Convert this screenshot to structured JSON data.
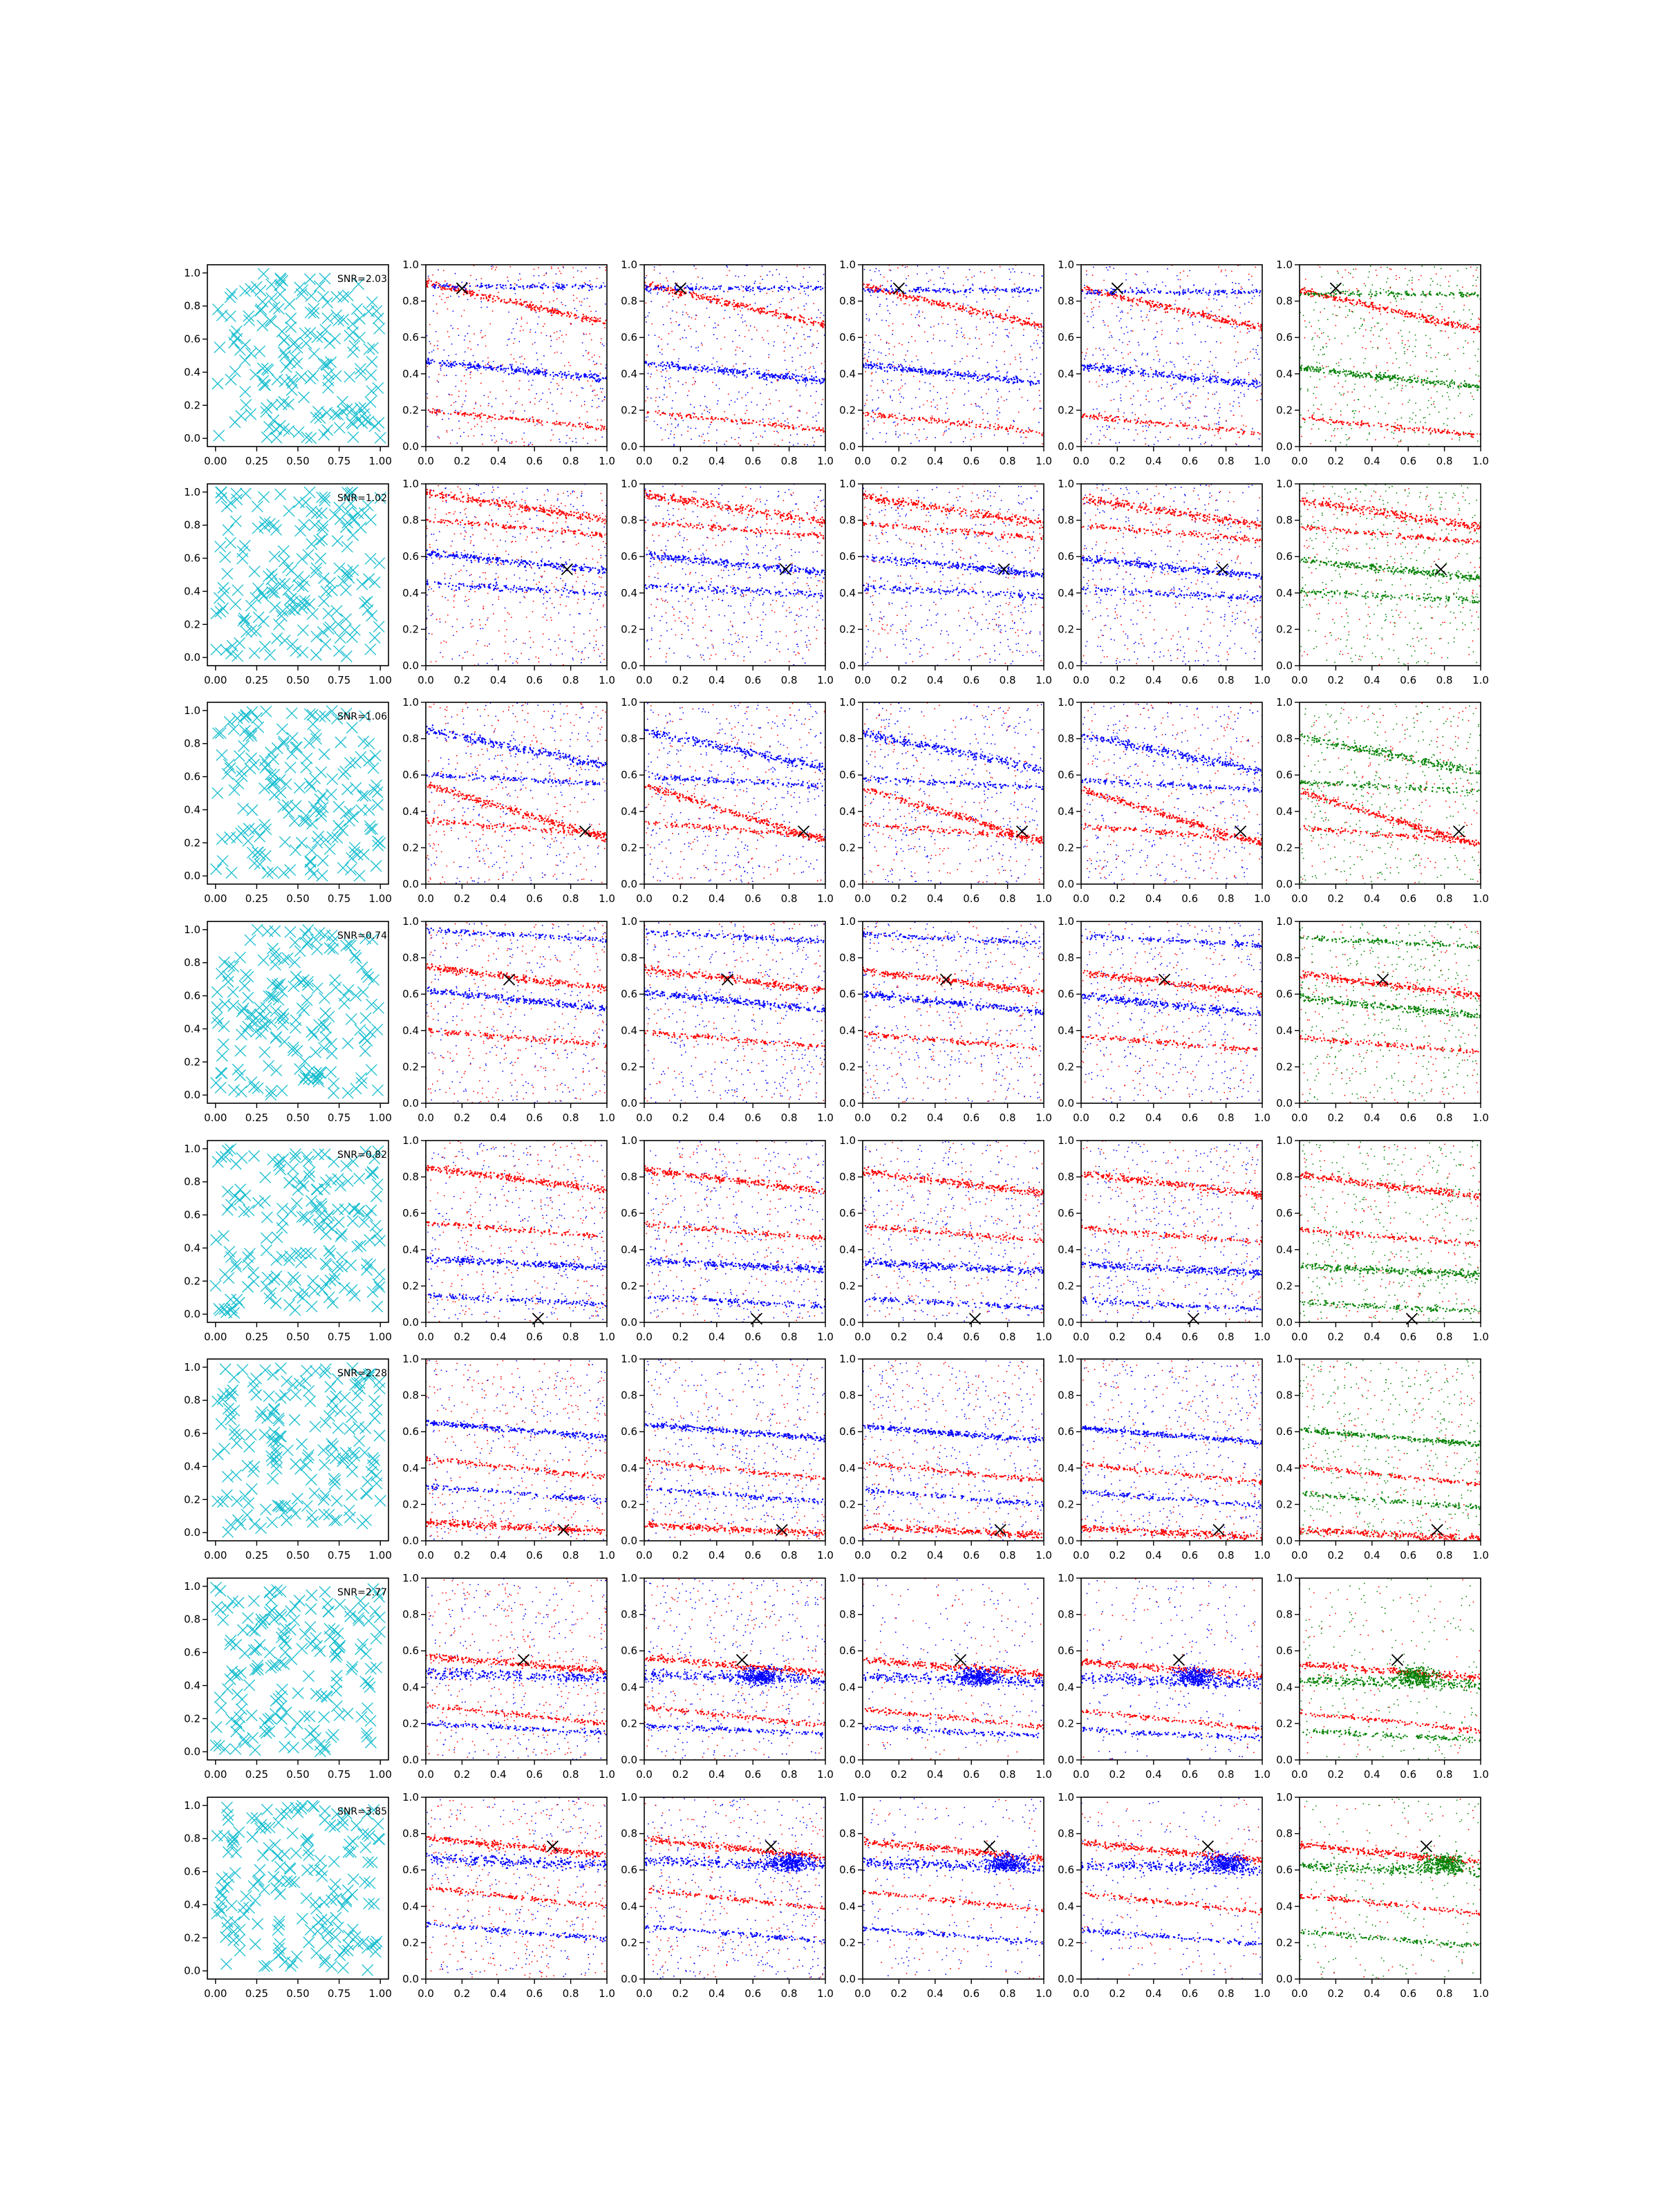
{
  "figure": {
    "rows": 8,
    "cols": 6,
    "grid_panel_ticks": [
      "0.0",
      "0.2",
      "0.4",
      "0.6",
      "0.8",
      "1.0"
    ],
    "scatter_panel_xticks": [
      "0.00",
      "0.25",
      "0.50",
      "0.75",
      "1.00"
    ],
    "scatter_panel_yticks": [
      "0.0",
      "0.2",
      "0.4",
      "0.6",
      "0.8",
      "1.0"
    ]
  },
  "colors": {
    "cyan": "#17becf",
    "red": "#ff0000",
    "blue": "#0000ff",
    "green": "#008000",
    "marker": "#000000"
  },
  "chart_data": {
    "type": "scatter",
    "description_units": "x and y in [0,1]",
    "rows": [
      {
        "snr_label": "SNR=2.03",
        "cross": [
          0.2,
          0.87
        ],
        "stripes": [
          {
            "y0": 0.9,
            "slope": -0.22,
            "w": 0.02
          },
          {
            "y0": 0.47,
            "slope": -0.1,
            "w": 0.02
          },
          {
            "y0": 0.2,
            "slope": -0.1,
            "w": 0.015
          },
          {
            "y0": 0.88,
            "slope": 0.0,
            "w": 0.015
          }
        ]
      },
      {
        "snr_label": "SNR=1.02",
        "cross": [
          0.78,
          0.53
        ],
        "stripes": [
          {
            "y0": 0.95,
            "slope": -0.15,
            "w": 0.025
          },
          {
            "y0": 0.62,
            "slope": -0.1,
            "w": 0.02
          },
          {
            "y0": 0.8,
            "slope": -0.08,
            "w": 0.015
          },
          {
            "y0": 0.45,
            "slope": -0.05,
            "w": 0.02
          }
        ]
      },
      {
        "snr_label": "SNR=1.06",
        "cross": [
          0.88,
          0.29
        ],
        "stripes": [
          {
            "y0": 0.55,
            "slope": -0.3,
            "w": 0.02
          },
          {
            "y0": 0.85,
            "slope": -0.2,
            "w": 0.025
          },
          {
            "y0": 0.35,
            "slope": -0.08,
            "w": 0.015
          },
          {
            "y0": 0.6,
            "slope": -0.05,
            "w": 0.015
          }
        ]
      },
      {
        "snr_label": "SNR=0.74",
        "cross": [
          0.46,
          0.68
        ],
        "stripes": [
          {
            "y0": 0.75,
            "slope": -0.12,
            "w": 0.02
          },
          {
            "y0": 0.62,
            "slope": -0.1,
            "w": 0.02
          },
          {
            "y0": 0.4,
            "slope": -0.08,
            "w": 0.015
          },
          {
            "y0": 0.95,
            "slope": -0.05,
            "w": 0.015
          }
        ]
      },
      {
        "snr_label": "SNR=0.82",
        "cross": [
          0.62,
          0.02
        ],
        "stripes": [
          {
            "y0": 0.85,
            "slope": -0.12,
            "w": 0.02
          },
          {
            "y0": 0.35,
            "slope": -0.05,
            "w": 0.02
          },
          {
            "y0": 0.55,
            "slope": -0.08,
            "w": 0.015
          },
          {
            "y0": 0.15,
            "slope": -0.05,
            "w": 0.015
          }
        ]
      },
      {
        "snr_label": "SNR=2.28",
        "cross": [
          0.76,
          0.06
        ],
        "stripes": [
          {
            "y0": 0.1,
            "slope": -0.05,
            "w": 0.02
          },
          {
            "y0": 0.65,
            "slope": -0.08,
            "w": 0.015
          },
          {
            "y0": 0.45,
            "slope": -0.1,
            "w": 0.015
          },
          {
            "y0": 0.3,
            "slope": -0.08,
            "w": 0.015
          }
        ]
      },
      {
        "snr_label": "SNR=2.77",
        "cross": [
          0.54,
          0.55
        ],
        "stripes": [
          {
            "y0": 0.57,
            "slope": -0.08,
            "w": 0.02
          },
          {
            "y0": 0.48,
            "slope": -0.03,
            "w": 0.03
          },
          {
            "y0": 0.3,
            "slope": -0.1,
            "w": 0.015
          },
          {
            "y0": 0.2,
            "slope": -0.05,
            "w": 0.015
          }
        ]
      },
      {
        "snr_label": "SNR=3.85",
        "cross": [
          0.7,
          0.73
        ],
        "stripes": [
          {
            "y0": 0.78,
            "slope": -0.1,
            "w": 0.02
          },
          {
            "y0": 0.66,
            "slope": -0.03,
            "w": 0.03
          },
          {
            "y0": 0.5,
            "slope": -0.1,
            "w": 0.015
          },
          {
            "y0": 0.3,
            "slope": -0.08,
            "w": 0.015
          }
        ]
      }
    ]
  }
}
